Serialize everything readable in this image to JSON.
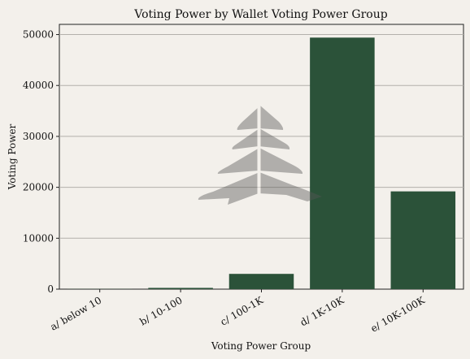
{
  "chart_data": {
    "type": "bar",
    "title": "Voting Power by Wallet Voting Power Group",
    "xlabel": "Voting Power Group",
    "ylabel": "Voting Power",
    "categories": [
      "a/ below 10",
      "b/ 10-100",
      "c/ 100-1K",
      "d/ 1K-10K",
      "e/ 10K-100K"
    ],
    "values": [
      30,
      250,
      3000,
      49400,
      19200
    ],
    "ylim": [
      0,
      52000
    ],
    "yticks": [
      0,
      10000,
      20000,
      30000,
      40000,
      50000
    ],
    "grid": "horizontal",
    "bar_color": "#2b5239",
    "background_color": "#f3f0eb",
    "watermark_icon": "pine-tree-logo"
  }
}
